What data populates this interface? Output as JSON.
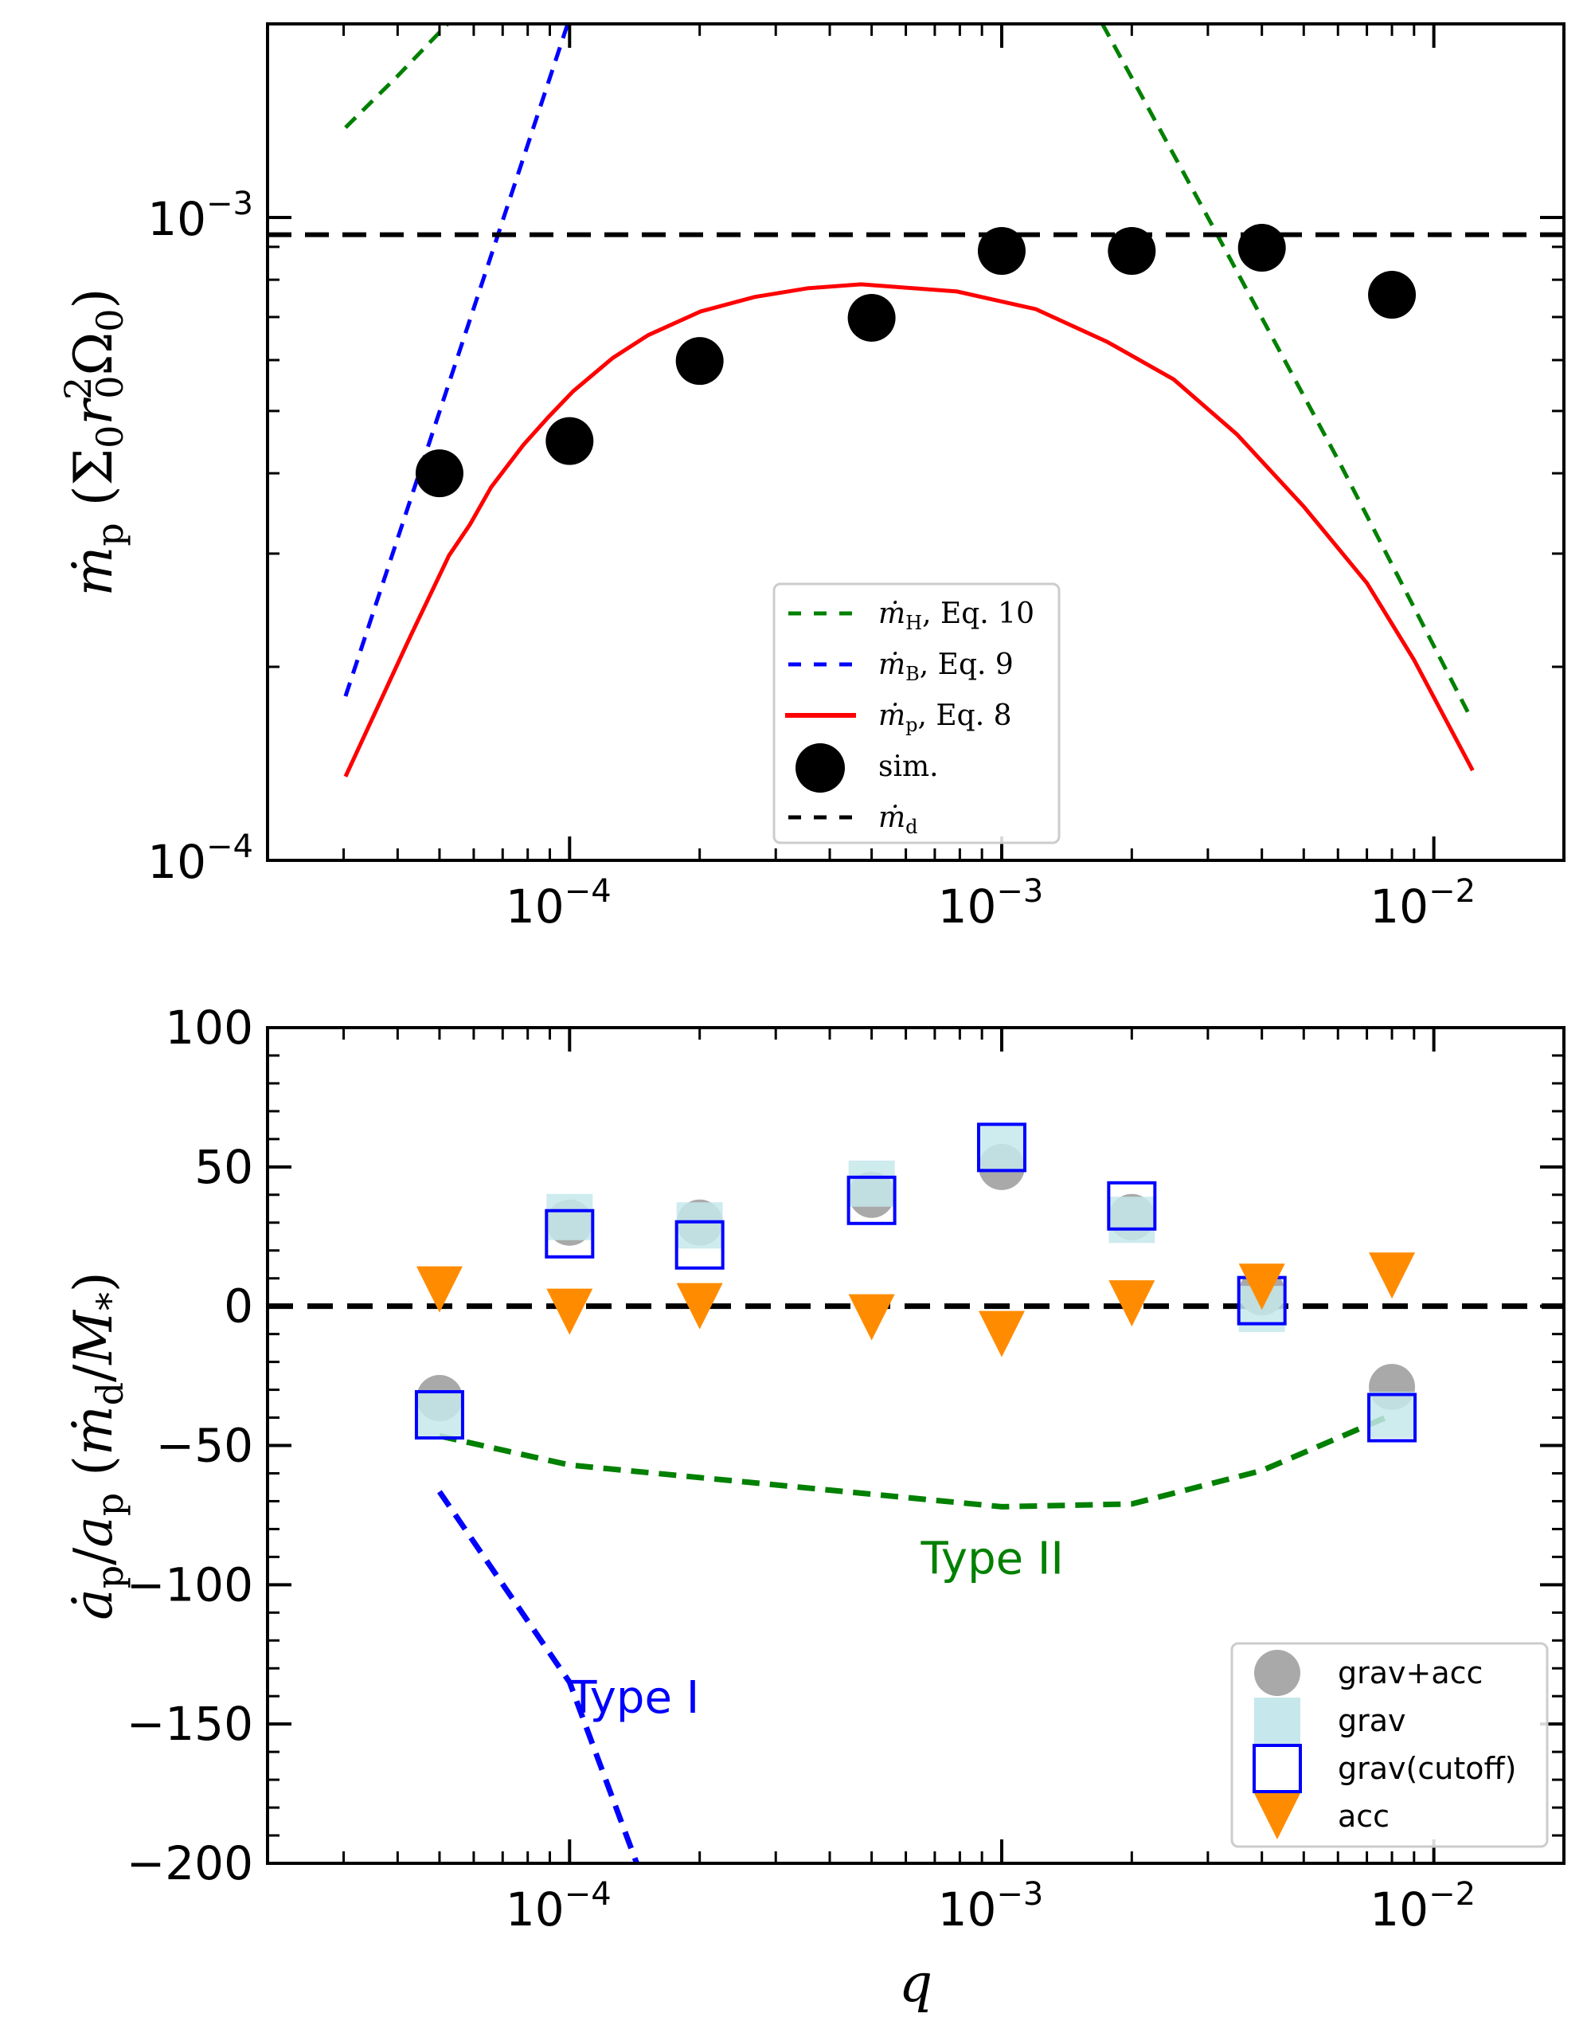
{
  "chart_data": [
    {
      "type": "line",
      "panel": "top",
      "title": "",
      "xlabel": "",
      "ylabel": "ṁp (Σ0 r0² Ω0)",
      "xscale": "log",
      "yscale": "log",
      "xlim": [
        2e-05,
        0.02
      ],
      "ylim": [
        0.0001,
        0.002
      ],
      "x_ticks": [
        {
          "value": 0.0001,
          "base": "10",
          "exp": "−4"
        },
        {
          "value": 0.001,
          "base": "10",
          "exp": "−3"
        },
        {
          "value": 0.01,
          "base": "10",
          "exp": "−2"
        }
      ],
      "y_ticks": [
        {
          "value": 0.0001,
          "base": "10",
          "exp": "−4"
        },
        {
          "value": 0.001,
          "base": "10",
          "exp": "−3"
        }
      ],
      "grid": false,
      "legend_position": "lower-center",
      "series": [
        {
          "name": "ṁH, Eq. 10",
          "kind": "dashed-line",
          "color": "#008000",
          "segments": [
            [
              [
                3.03e-05,
                0.00138
              ],
              [
                4e-05,
                0.00166
              ],
              [
                5.22e-05,
                0.002
              ]
            ],
            [
              [
                0.00171,
                0.002
              ],
              [
                0.003,
                0.001
              ],
              [
                0.006,
                0.00042
              ],
              [
                0.0121,
                0.000168
              ]
            ]
          ]
        },
        {
          "name": "ṁB, Eq. 9",
          "kind": "dashed-line",
          "color": "#0000ff",
          "segments": [
            [
              [
                3.03e-05,
                0.00018
              ],
              [
                9.9e-05,
                0.002
              ]
            ]
          ]
        },
        {
          "name": "ṁp, Eq. 8",
          "kind": "solid-line",
          "color": "#ff0000",
          "segments": [
            [
              [
                3.03e-05,
                0.000135
              ],
              [
                4.28e-05,
                0.000223
              ],
              [
                5.26e-05,
                0.000298
              ],
              [
                5.88e-05,
                0.000333
              ],
              [
                6.59e-05,
                0.000381
              ],
              [
                7.82e-05,
                0.000443
              ],
              [
                8.95e-05,
                0.00049
              ],
              [
                0.000102,
                0.000537
              ],
              [
                0.000126,
                0.000605
              ],
              [
                0.000152,
                0.000656
              ],
              [
                0.000201,
                0.000714
              ],
              [
                0.000268,
                0.000752
              ],
              [
                0.000356,
                0.000776
              ],
              [
                0.000473,
                0.000787
              ],
              [
                0.000788,
                0.000767
              ],
              [
                0.0012,
                0.00072
              ],
              [
                0.00175,
                0.000641
              ],
              [
                0.0025,
                0.00056
              ],
              [
                0.0035,
                0.00046
              ],
              [
                0.005,
                0.000355
              ],
              [
                0.007,
                0.00027
              ],
              [
                0.009,
                0.000205
              ],
              [
                0.0123,
                0.000138
              ]
            ]
          ]
        },
        {
          "name": "sim.",
          "kind": "scatter-circle",
          "color": "#000000",
          "x": [
            5e-05,
            0.0001,
            0.0002,
            0.0005,
            0.001,
            0.002,
            0.004,
            0.008
          ],
          "y": [
            0.0004,
            0.000449,
            0.000598,
            0.000698,
            0.000887,
            0.000887,
            0.000897,
            0.000758
          ]
        },
        {
          "name": "ṁd",
          "kind": "hline-dashed",
          "color": "#000000",
          "y": 0.00094
        }
      ],
      "legend": [
        {
          "symbol": "ṁ",
          "sub": "H",
          "rest": ", Eq.  10",
          "kind": "dashed-line",
          "color": "#008000"
        },
        {
          "symbol": "ṁ",
          "sub": "B",
          "rest": ", Eq.  9",
          "kind": "dashed-line",
          "color": "#0000ff"
        },
        {
          "symbol": "ṁ",
          "sub": "p",
          "rest": ", Eq.  8",
          "kind": "solid-line",
          "color": "#ff0000"
        },
        {
          "symbol": "",
          "sub": "",
          "rest": "sim.",
          "kind": "circle",
          "color": "#000000"
        },
        {
          "symbol": "ṁ",
          "sub": "d",
          "rest": "",
          "kind": "dashed-line",
          "color": "#000000"
        }
      ]
    },
    {
      "type": "scatter",
      "panel": "bottom",
      "title": "",
      "xlabel": "q",
      "ylabel": "ȧp/ap (ṁd/M*)",
      "xscale": "log",
      "yscale": "linear",
      "xlim": [
        2e-05,
        0.02
      ],
      "ylim": [
        -200,
        100
      ],
      "x_ticks": [
        {
          "value": 0.0001,
          "base": "10",
          "exp": "−4"
        },
        {
          "value": 0.001,
          "base": "10",
          "exp": "−3"
        },
        {
          "value": 0.01,
          "base": "10",
          "exp": "−2"
        }
      ],
      "y_ticks": [
        {
          "value": 100,
          "label": "100"
        },
        {
          "value": 50,
          "label": "50"
        },
        {
          "value": 0,
          "label": "0"
        },
        {
          "value": -50,
          "label": "−50"
        },
        {
          "value": -100,
          "label": "−100"
        },
        {
          "value": -150,
          "label": "−150"
        },
        {
          "value": -200,
          "label": "−200"
        }
      ],
      "grid": false,
      "legend_position": "lower-right",
      "x": [
        5e-05,
        0.0001,
        0.0002,
        0.0005,
        0.001,
        0.002,
        0.004,
        0.008
      ],
      "series": [
        {
          "name": "grav+acc",
          "kind": "circle",
          "color": "#a9a9a9",
          "values": [
            -33,
            30,
            30,
            40,
            50,
            32,
            5,
            -29
          ]
        },
        {
          "name": "grav",
          "kind": "filled-square",
          "color": "#c6e7eb",
          "values": [
            -39,
            32,
            29,
            44,
            57,
            31,
            -1,
            -39
          ]
        },
        {
          "name": "grav(cutoff)",
          "kind": "open-square",
          "color": "#0000ff",
          "values": [
            -39,
            26,
            22,
            38,
            57,
            36,
            2,
            -40
          ]
        },
        {
          "name": "acc",
          "kind": "triangle-down",
          "color": "#ff8c00",
          "values": [
            6,
            -2,
            0,
            -4,
            -10,
            1,
            7,
            11
          ]
        }
      ],
      "lines": [
        {
          "name": "zero",
          "kind": "hline-dashed",
          "color": "#000000",
          "y": 0
        },
        {
          "name": "Type II",
          "kind": "dashed-line",
          "color": "#008000",
          "points": [
            [
              5e-05,
              -46.6
            ],
            [
              0.0001,
              -57
            ],
            [
              0.001,
              -72
            ],
            [
              0.002,
              -71
            ],
            [
              0.004,
              -59
            ],
            [
              0.008,
              -39
            ]
          ]
        },
        {
          "name": "Type I",
          "kind": "dashed-line",
          "color": "#0000ff",
          "points": [
            [
              5e-05,
              -66.6
            ],
            [
              0.0001,
              -135
            ],
            [
              0.000143,
              -200
            ]
          ]
        }
      ],
      "annotations": [
        {
          "text": "Type II",
          "x": 0.00065,
          "y": -96,
          "color": "#008000"
        },
        {
          "text": "Type I",
          "x": 0.0001,
          "y": -146,
          "color": "#0000ff"
        }
      ]
    }
  ]
}
